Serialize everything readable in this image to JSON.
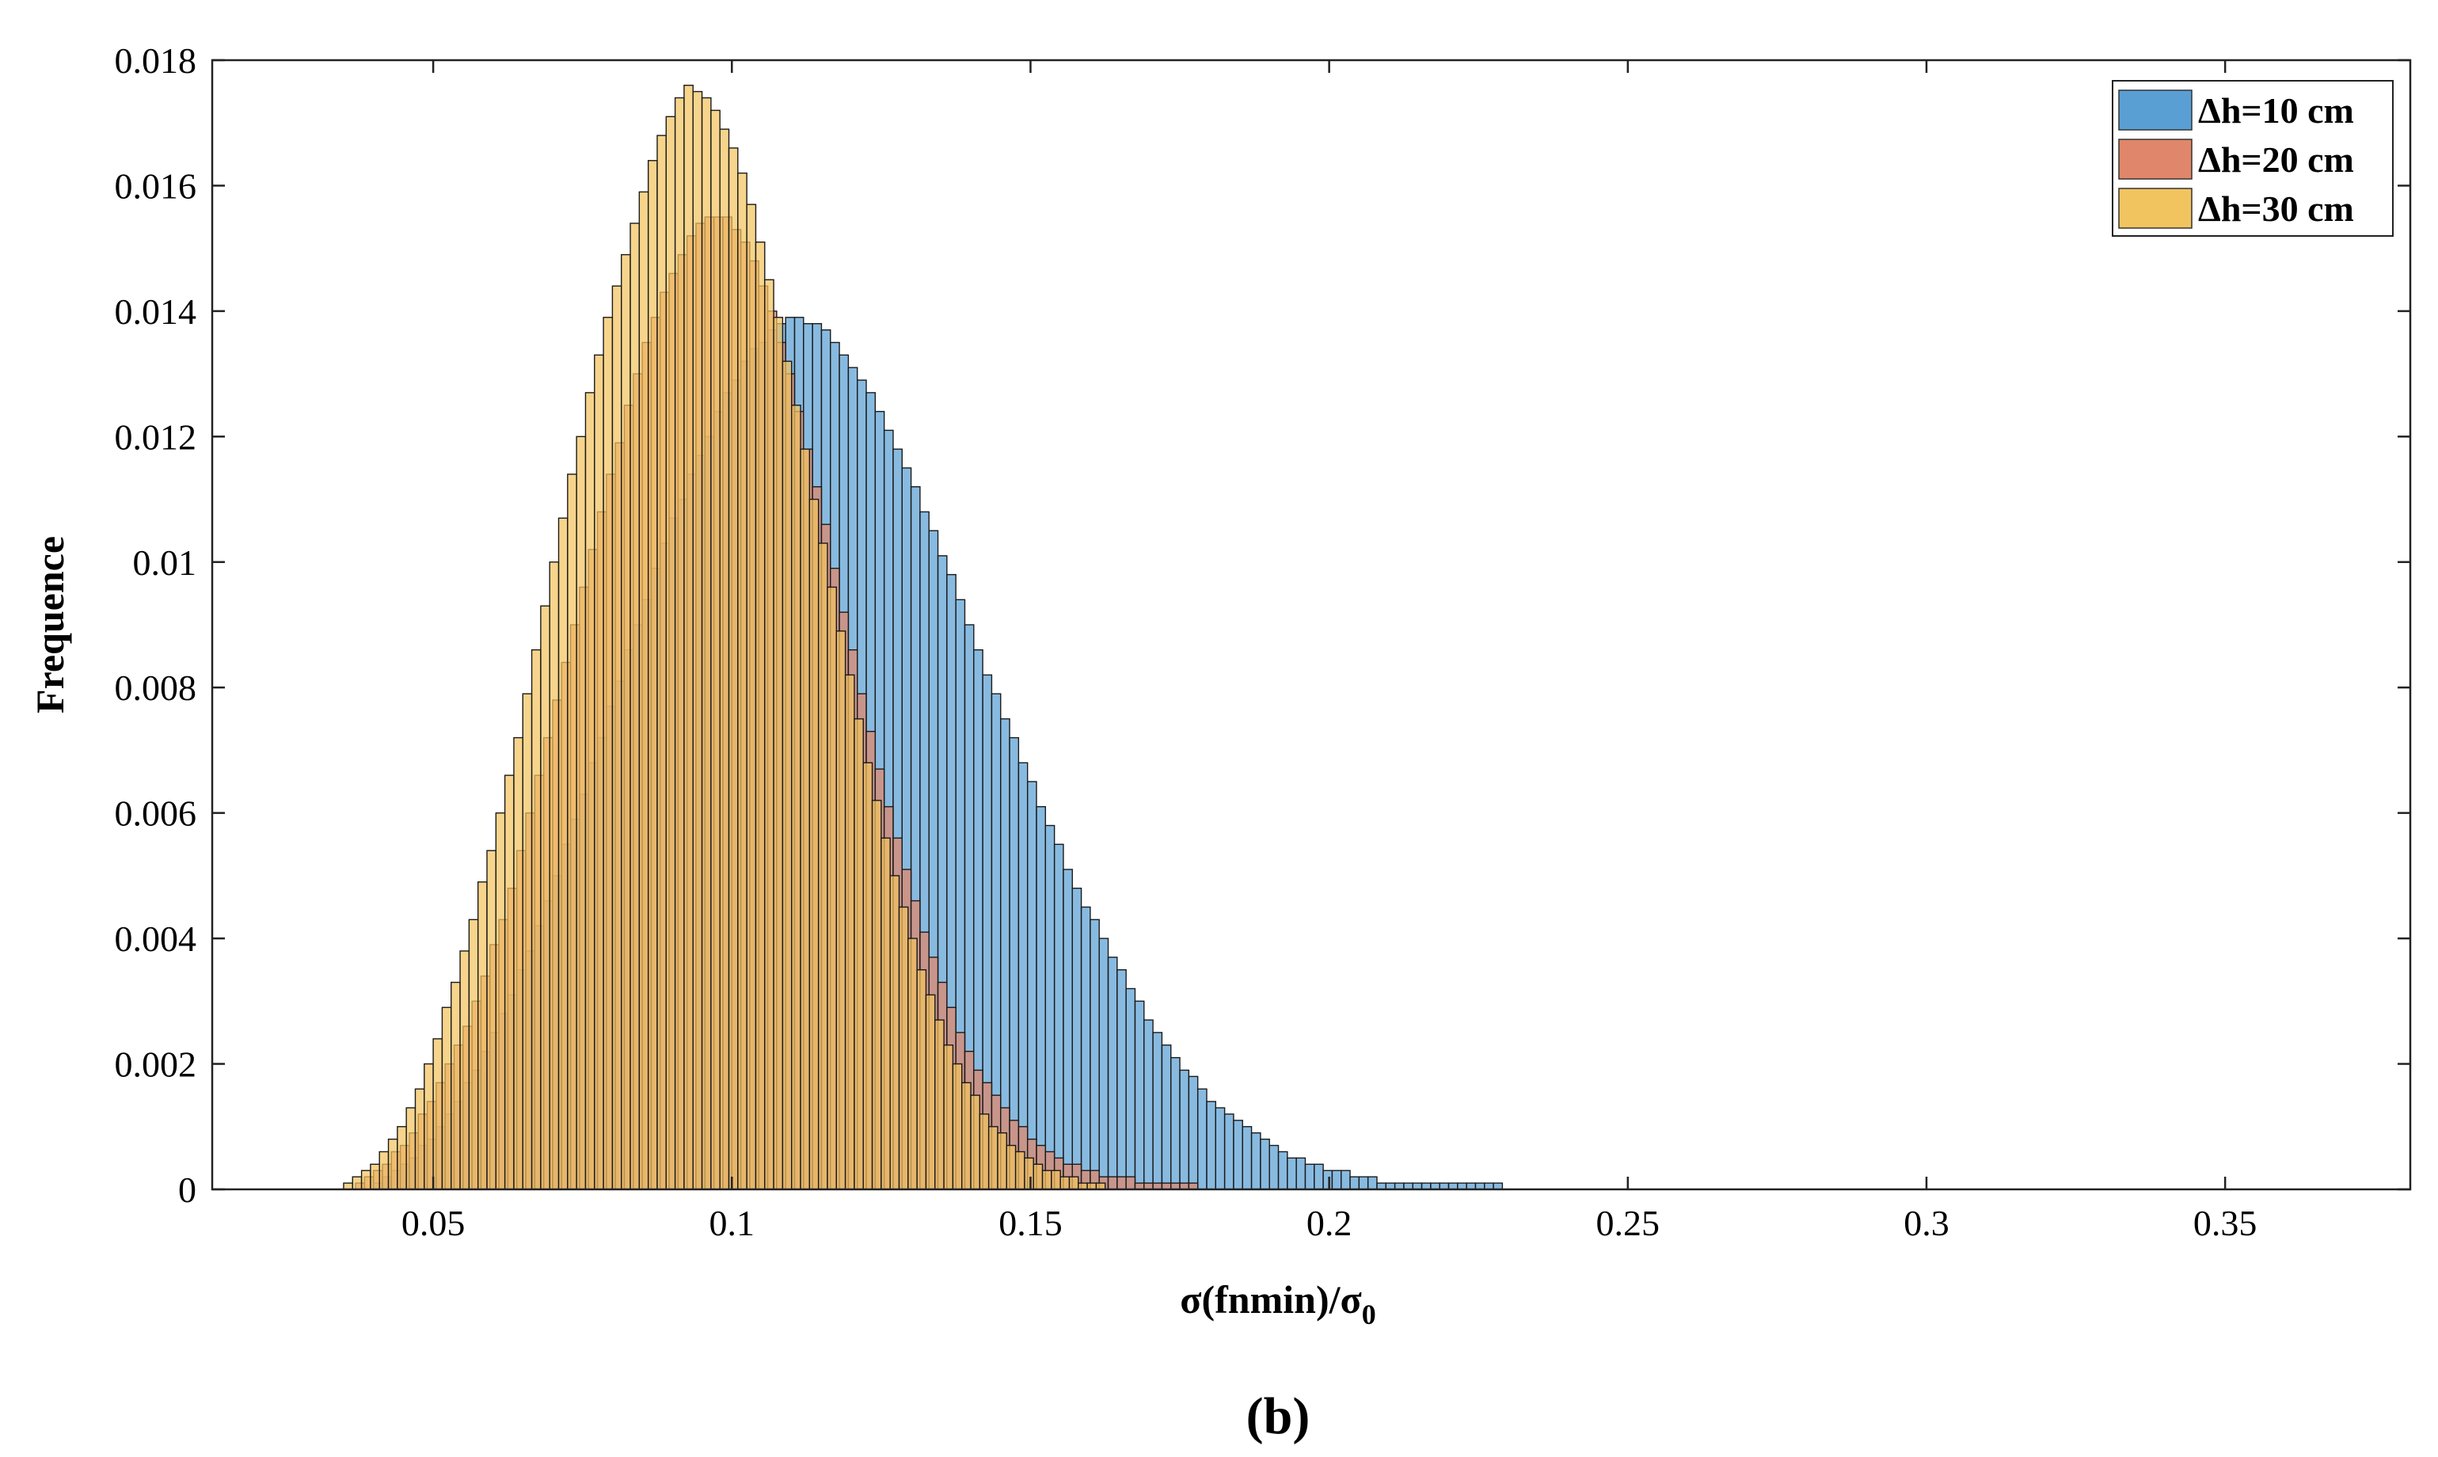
{
  "chart_data": {
    "type": "histogram",
    "xlabel": "σ(fnmin)/σ",
    "xlabel_subscript": "0",
    "ylabel": "Frequence",
    "panel_label": "(b)",
    "xlim": [
      0.013,
      0.381
    ],
    "ylim": [
      0,
      0.018
    ],
    "xticks": [
      0.05,
      0.1,
      0.15,
      0.2,
      0.25,
      0.3,
      0.35
    ],
    "xtick_labels": [
      "0.05",
      "0.1",
      "0.15",
      "0.2",
      "0.25",
      "0.3",
      "0.35"
    ],
    "yticks": [
      0,
      0.002,
      0.004,
      0.006,
      0.008,
      0.01,
      0.012,
      0.014,
      0.016,
      0.018
    ],
    "ytick_labels": [
      "0",
      "0.002",
      "0.004",
      "0.006",
      "0.008",
      "0.01",
      "0.012",
      "0.014",
      "0.016",
      "0.018"
    ],
    "grid": false,
    "legend_position": "top-right",
    "bin_width": 0.0015,
    "series": [
      {
        "name": "Δh=10 cm",
        "color": "#5a9fd4",
        "bin_start": 0.04,
        "values": [
          0.0001,
          0.0002,
          0.0003,
          0.0004,
          0.0005,
          0.0007,
          0.0008,
          0.001,
          0.0012,
          0.0014,
          0.0017,
          0.0019,
          0.0022,
          0.0025,
          0.0028,
          0.0031,
          0.0035,
          0.0038,
          0.0042,
          0.0046,
          0.005,
          0.0055,
          0.0059,
          0.0063,
          0.0068,
          0.0072,
          0.0077,
          0.0081,
          0.0086,
          0.009,
          0.0094,
          0.0099,
          0.0103,
          0.0107,
          0.011,
          0.0114,
          0.0117,
          0.012,
          0.0124,
          0.0127,
          0.0129,
          0.0132,
          0.0134,
          0.0135,
          0.0137,
          0.0138,
          0.0139,
          0.0139,
          0.0138,
          0.0138,
          0.0137,
          0.0135,
          0.0133,
          0.0131,
          0.0129,
          0.0127,
          0.0124,
          0.0121,
          0.0118,
          0.0115,
          0.0112,
          0.0108,
          0.0105,
          0.0101,
          0.0098,
          0.0094,
          0.009,
          0.0086,
          0.0082,
          0.0079,
          0.0075,
          0.0072,
          0.0068,
          0.0065,
          0.0061,
          0.0058,
          0.0055,
          0.0051,
          0.0048,
          0.0045,
          0.0043,
          0.004,
          0.0037,
          0.0035,
          0.0032,
          0.003,
          0.0027,
          0.0025,
          0.0023,
          0.0021,
          0.0019,
          0.0018,
          0.0016,
          0.0014,
          0.0013,
          0.0012,
          0.0011,
          0.001,
          0.0009,
          0.0008,
          0.0007,
          0.0006,
          0.0005,
          0.0005,
          0.0004,
          0.0004,
          0.0003,
          0.0003,
          0.0003,
          0.0002,
          0.0002,
          0.0002,
          0.0001,
          0.0001,
          0.0001,
          0.0001,
          0.0001,
          0.0001,
          0.0001,
          0.0001,
          0.0001,
          0.0001,
          0.0001,
          0.0001,
          0.0001,
          0.0001
        ]
      },
      {
        "name": "Δh=20 cm",
        "color": "#e0866a",
        "bin_start": 0.037,
        "values": [
          0.0001,
          0.0002,
          0.0003,
          0.0004,
          0.0006,
          0.0007,
          0.0009,
          0.0012,
          0.0014,
          0.0017,
          0.002,
          0.0023,
          0.0026,
          0.003,
          0.0034,
          0.0039,
          0.0043,
          0.0048,
          0.0054,
          0.006,
          0.0066,
          0.0072,
          0.0078,
          0.0084,
          0.009,
          0.0096,
          0.0102,
          0.0108,
          0.0114,
          0.0119,
          0.0125,
          0.013,
          0.0135,
          0.0139,
          0.0143,
          0.0146,
          0.0149,
          0.0152,
          0.0154,
          0.0155,
          0.0155,
          0.0155,
          0.0153,
          0.0151,
          0.0148,
          0.0144,
          0.014,
          0.0135,
          0.013,
          0.0124,
          0.0118,
          0.0112,
          0.0106,
          0.0099,
          0.0092,
          0.0086,
          0.0079,
          0.0073,
          0.0067,
          0.0061,
          0.0056,
          0.0051,
          0.0046,
          0.0041,
          0.0037,
          0.0033,
          0.0029,
          0.0025,
          0.0022,
          0.0019,
          0.0017,
          0.0015,
          0.0013,
          0.0011,
          0.001,
          0.0008,
          0.0007,
          0.0006,
          0.0005,
          0.0004,
          0.0004,
          0.0003,
          0.0003,
          0.0002,
          0.0002,
          0.0002,
          0.0002,
          0.0001,
          0.0001,
          0.0001,
          0.0001,
          0.0001,
          0.0001,
          0.0001
        ]
      },
      {
        "name": "Δh=30 cm",
        "color": "#f2c45f",
        "bin_start": 0.035,
        "values": [
          0.0001,
          0.0002,
          0.0003,
          0.0004,
          0.0006,
          0.0008,
          0.001,
          0.0013,
          0.0016,
          0.002,
          0.0024,
          0.0029,
          0.0033,
          0.0038,
          0.0043,
          0.0049,
          0.0054,
          0.006,
          0.0066,
          0.0072,
          0.0079,
          0.0086,
          0.0093,
          0.01,
          0.0107,
          0.0114,
          0.012,
          0.0127,
          0.0133,
          0.0139,
          0.0144,
          0.0149,
          0.0154,
          0.0159,
          0.0164,
          0.0168,
          0.0171,
          0.0174,
          0.0176,
          0.0175,
          0.0174,
          0.0172,
          0.0169,
          0.0166,
          0.0162,
          0.0157,
          0.0151,
          0.0145,
          0.0139,
          0.0132,
          0.0125,
          0.0118,
          0.011,
          0.0103,
          0.0096,
          0.0089,
          0.0082,
          0.0075,
          0.0068,
          0.0062,
          0.0056,
          0.005,
          0.0045,
          0.004,
          0.0035,
          0.0031,
          0.0027,
          0.0023,
          0.002,
          0.0017,
          0.0015,
          0.0012,
          0.001,
          0.0009,
          0.0007,
          0.0006,
          0.0005,
          0.0004,
          0.0003,
          0.0003,
          0.0002,
          0.0002,
          0.0001,
          0.0001,
          0.0001
        ]
      }
    ]
  }
}
